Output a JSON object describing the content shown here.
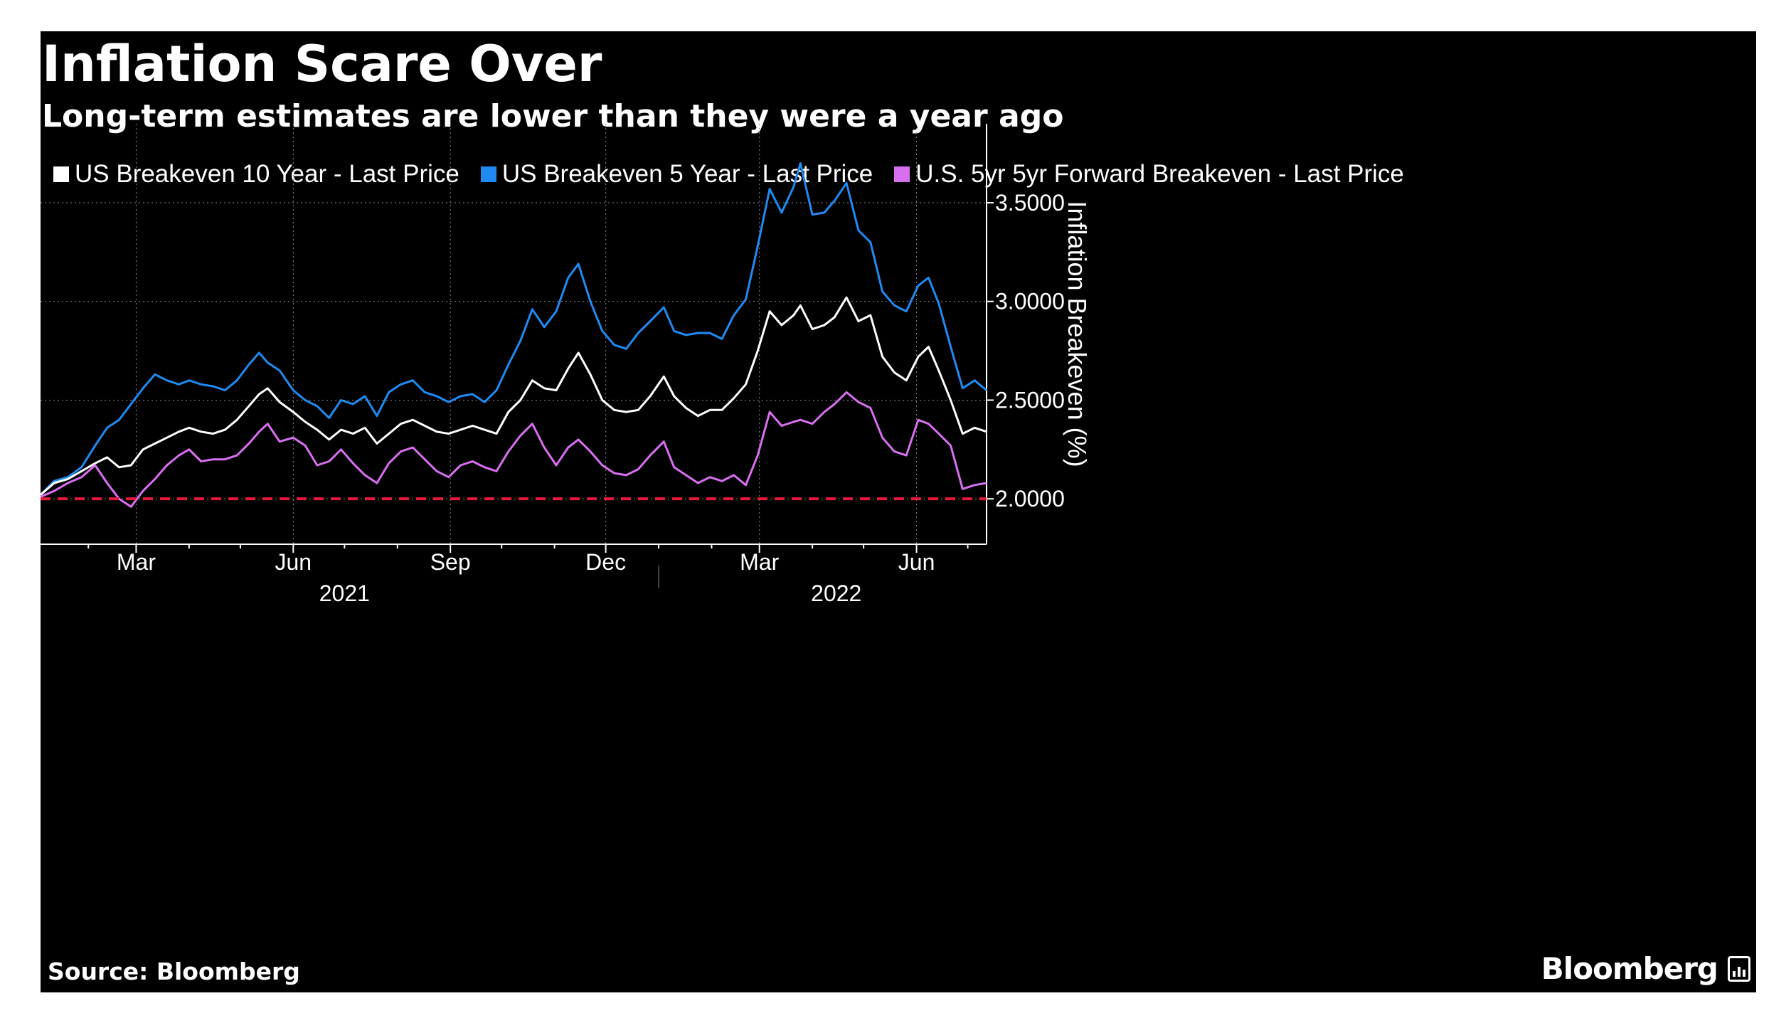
{
  "brand": "Bloomberg",
  "chart_data": {
    "type": "line",
    "title": "Inflation Scare Over",
    "subtitle": "Long-term estimates are lower than they were a year ago",
    "source": "Source: Bloomberg",
    "ylabel": "Inflation Breakeven (%)",
    "ylim": [
      1.77,
      3.9
    ],
    "y_ticks": [
      2.0,
      2.5,
      3.0,
      3.5
    ],
    "y_tick_labels": [
      "2.0000",
      "2.5000",
      "3.0000",
      "3.5000"
    ],
    "y_axis_side": "right",
    "x_range": [
      "2021-01-04",
      "2022-07-12"
    ],
    "x_ticks": [
      {
        "date": "2021-03-01",
        "label": "Mar"
      },
      {
        "date": "2021-06-01",
        "label": "Jun"
      },
      {
        "date": "2021-09-01",
        "label": "Sep"
      },
      {
        "date": "2021-12-01",
        "label": "Dec"
      },
      {
        "date": "2022-03-01",
        "label": "Mar"
      },
      {
        "date": "2022-06-01",
        "label": "Jun"
      }
    ],
    "x_minor_ticks": [
      "2021-02-01",
      "2021-04-01",
      "2021-05-01",
      "2021-07-01",
      "2021-08-01",
      "2021-10-01",
      "2021-11-01",
      "2022-01-01",
      "2022-02-01",
      "2022-04-01",
      "2022-05-01",
      "2022-07-01"
    ],
    "year_labels": [
      {
        "label": "2021",
        "center": "2021-07-01"
      },
      {
        "label": "2022",
        "center": "2022-04-15"
      }
    ],
    "year_divider": "2022-01-01",
    "grid": true,
    "legend_position": "top-left",
    "reference_line": {
      "value": 2.0,
      "color": "#e8183c",
      "style": "dashed"
    },
    "series": [
      {
        "name": "US Breakeven 10 Year - Last Price",
        "color": "#ffffff",
        "points": [
          [
            "2021-01-04",
            2.02
          ],
          [
            "2021-01-12",
            2.08
          ],
          [
            "2021-01-20",
            2.1
          ],
          [
            "2021-01-28",
            2.14
          ],
          [
            "2021-02-05",
            2.18
          ],
          [
            "2021-02-12",
            2.21
          ],
          [
            "2021-02-19",
            2.16
          ],
          [
            "2021-02-26",
            2.17
          ],
          [
            "2021-03-05",
            2.25
          ],
          [
            "2021-03-12",
            2.28
          ],
          [
            "2021-03-19",
            2.31
          ],
          [
            "2021-03-26",
            2.34
          ],
          [
            "2021-04-01",
            2.36
          ],
          [
            "2021-04-08",
            2.34
          ],
          [
            "2021-04-15",
            2.33
          ],
          [
            "2021-04-22",
            2.35
          ],
          [
            "2021-04-29",
            2.4
          ],
          [
            "2021-05-06",
            2.47
          ],
          [
            "2021-05-12",
            2.53
          ],
          [
            "2021-05-17",
            2.56
          ],
          [
            "2021-05-24",
            2.49
          ],
          [
            "2021-06-01",
            2.44
          ],
          [
            "2021-06-08",
            2.39
          ],
          [
            "2021-06-15",
            2.35
          ],
          [
            "2021-06-22",
            2.3
          ],
          [
            "2021-06-29",
            2.35
          ],
          [
            "2021-07-06",
            2.33
          ],
          [
            "2021-07-13",
            2.36
          ],
          [
            "2021-07-20",
            2.28
          ],
          [
            "2021-07-27",
            2.33
          ],
          [
            "2021-08-03",
            2.38
          ],
          [
            "2021-08-10",
            2.4
          ],
          [
            "2021-08-17",
            2.37
          ],
          [
            "2021-08-24",
            2.34
          ],
          [
            "2021-08-31",
            2.33
          ],
          [
            "2021-09-07",
            2.35
          ],
          [
            "2021-09-14",
            2.37
          ],
          [
            "2021-09-21",
            2.35
          ],
          [
            "2021-09-28",
            2.33
          ],
          [
            "2021-10-05",
            2.44
          ],
          [
            "2021-10-12",
            2.5
          ],
          [
            "2021-10-19",
            2.6
          ],
          [
            "2021-10-26",
            2.56
          ],
          [
            "2021-11-02",
            2.55
          ],
          [
            "2021-11-09",
            2.66
          ],
          [
            "2021-11-15",
            2.74
          ],
          [
            "2021-11-22",
            2.63
          ],
          [
            "2021-11-29",
            2.5
          ],
          [
            "2021-12-06",
            2.45
          ],
          [
            "2021-12-13",
            2.44
          ],
          [
            "2021-12-20",
            2.45
          ],
          [
            "2021-12-27",
            2.52
          ],
          [
            "2022-01-04",
            2.62
          ],
          [
            "2022-01-10",
            2.52
          ],
          [
            "2022-01-17",
            2.46
          ],
          [
            "2022-01-24",
            2.42
          ],
          [
            "2022-01-31",
            2.45
          ],
          [
            "2022-02-07",
            2.45
          ],
          [
            "2022-02-14",
            2.51
          ],
          [
            "2022-02-21",
            2.58
          ],
          [
            "2022-02-28",
            2.75
          ],
          [
            "2022-03-07",
            2.95
          ],
          [
            "2022-03-14",
            2.88
          ],
          [
            "2022-03-21",
            2.93
          ],
          [
            "2022-03-25",
            2.98
          ],
          [
            "2022-04-01",
            2.86
          ],
          [
            "2022-04-08",
            2.88
          ],
          [
            "2022-04-14",
            2.92
          ],
          [
            "2022-04-21",
            3.02
          ],
          [
            "2022-04-28",
            2.9
          ],
          [
            "2022-05-05",
            2.93
          ],
          [
            "2022-05-12",
            2.72
          ],
          [
            "2022-05-19",
            2.64
          ],
          [
            "2022-05-26",
            2.6
          ],
          [
            "2022-06-02",
            2.72
          ],
          [
            "2022-06-08",
            2.77
          ],
          [
            "2022-06-14",
            2.65
          ],
          [
            "2022-06-21",
            2.5
          ],
          [
            "2022-06-28",
            2.33
          ],
          [
            "2022-07-05",
            2.36
          ],
          [
            "2022-07-12",
            2.34
          ]
        ]
      },
      {
        "name": "US Breakeven 5 Year - Last Price",
        "color": "#1f8bf2",
        "points": [
          [
            "2021-01-04",
            2.02
          ],
          [
            "2021-01-12",
            2.09
          ],
          [
            "2021-01-20",
            2.11
          ],
          [
            "2021-01-28",
            2.16
          ],
          [
            "2021-02-05",
            2.27
          ],
          [
            "2021-02-12",
            2.36
          ],
          [
            "2021-02-19",
            2.4
          ],
          [
            "2021-02-26",
            2.48
          ],
          [
            "2021-03-05",
            2.56
          ],
          [
            "2021-03-12",
            2.63
          ],
          [
            "2021-03-19",
            2.6
          ],
          [
            "2021-03-26",
            2.58
          ],
          [
            "2021-04-01",
            2.6
          ],
          [
            "2021-04-08",
            2.58
          ],
          [
            "2021-04-15",
            2.57
          ],
          [
            "2021-04-22",
            2.55
          ],
          [
            "2021-04-29",
            2.6
          ],
          [
            "2021-05-06",
            2.68
          ],
          [
            "2021-05-12",
            2.74
          ],
          [
            "2021-05-17",
            2.69
          ],
          [
            "2021-05-24",
            2.65
          ],
          [
            "2021-06-01",
            2.55
          ],
          [
            "2021-06-08",
            2.5
          ],
          [
            "2021-06-15",
            2.47
          ],
          [
            "2021-06-22",
            2.41
          ],
          [
            "2021-06-29",
            2.5
          ],
          [
            "2021-07-06",
            2.48
          ],
          [
            "2021-07-13",
            2.52
          ],
          [
            "2021-07-20",
            2.42
          ],
          [
            "2021-07-27",
            2.54
          ],
          [
            "2021-08-03",
            2.58
          ],
          [
            "2021-08-10",
            2.6
          ],
          [
            "2021-08-17",
            2.54
          ],
          [
            "2021-08-24",
            2.52
          ],
          [
            "2021-08-31",
            2.49
          ],
          [
            "2021-09-07",
            2.52
          ],
          [
            "2021-09-14",
            2.53
          ],
          [
            "2021-09-21",
            2.49
          ],
          [
            "2021-09-28",
            2.55
          ],
          [
            "2021-10-05",
            2.68
          ],
          [
            "2021-10-12",
            2.8
          ],
          [
            "2021-10-19",
            2.96
          ],
          [
            "2021-10-26",
            2.87
          ],
          [
            "2021-11-02",
            2.95
          ],
          [
            "2021-11-09",
            3.12
          ],
          [
            "2021-11-15",
            3.19
          ],
          [
            "2021-11-22",
            3.0
          ],
          [
            "2021-11-29",
            2.85
          ],
          [
            "2021-12-06",
            2.78
          ],
          [
            "2021-12-13",
            2.76
          ],
          [
            "2021-12-20",
            2.84
          ],
          [
            "2021-12-27",
            2.9
          ],
          [
            "2022-01-04",
            2.97
          ],
          [
            "2022-01-10",
            2.85
          ],
          [
            "2022-01-17",
            2.83
          ],
          [
            "2022-01-24",
            2.84
          ],
          [
            "2022-01-31",
            2.84
          ],
          [
            "2022-02-07",
            2.81
          ],
          [
            "2022-02-14",
            2.93
          ],
          [
            "2022-02-21",
            3.01
          ],
          [
            "2022-02-28",
            3.28
          ],
          [
            "2022-03-07",
            3.57
          ],
          [
            "2022-03-14",
            3.45
          ],
          [
            "2022-03-21",
            3.58
          ],
          [
            "2022-03-25",
            3.7
          ],
          [
            "2022-04-01",
            3.44
          ],
          [
            "2022-04-08",
            3.45
          ],
          [
            "2022-04-14",
            3.51
          ],
          [
            "2022-04-21",
            3.6
          ],
          [
            "2022-04-28",
            3.36
          ],
          [
            "2022-05-05",
            3.3
          ],
          [
            "2022-05-12",
            3.05
          ],
          [
            "2022-05-19",
            2.98
          ],
          [
            "2022-05-26",
            2.95
          ],
          [
            "2022-06-02",
            3.08
          ],
          [
            "2022-06-08",
            3.12
          ],
          [
            "2022-06-14",
            2.99
          ],
          [
            "2022-06-21",
            2.77
          ],
          [
            "2022-06-28",
            2.56
          ],
          [
            "2022-07-05",
            2.6
          ],
          [
            "2022-07-12",
            2.55
          ]
        ]
      },
      {
        "name": "U.S. 5yr 5yr Forward Breakeven - Last Price",
        "color": "#d86ff0",
        "points": [
          [
            "2021-01-04",
            2.01
          ],
          [
            "2021-01-12",
            2.04
          ],
          [
            "2021-01-20",
            2.08
          ],
          [
            "2021-01-28",
            2.11
          ],
          [
            "2021-02-05",
            2.17
          ],
          [
            "2021-02-12",
            2.08
          ],
          [
            "2021-02-19",
            2.0
          ],
          [
            "2021-02-26",
            1.96
          ],
          [
            "2021-03-05",
            2.04
          ],
          [
            "2021-03-12",
            2.1
          ],
          [
            "2021-03-19",
            2.17
          ],
          [
            "2021-03-26",
            2.22
          ],
          [
            "2021-04-01",
            2.25
          ],
          [
            "2021-04-08",
            2.19
          ],
          [
            "2021-04-15",
            2.2
          ],
          [
            "2021-04-22",
            2.2
          ],
          [
            "2021-04-29",
            2.22
          ],
          [
            "2021-05-06",
            2.28
          ],
          [
            "2021-05-12",
            2.34
          ],
          [
            "2021-05-17",
            2.38
          ],
          [
            "2021-05-24",
            2.29
          ],
          [
            "2021-06-01",
            2.31
          ],
          [
            "2021-06-08",
            2.27
          ],
          [
            "2021-06-15",
            2.17
          ],
          [
            "2021-06-22",
            2.19
          ],
          [
            "2021-06-29",
            2.25
          ],
          [
            "2021-07-06",
            2.18
          ],
          [
            "2021-07-13",
            2.12
          ],
          [
            "2021-07-20",
            2.08
          ],
          [
            "2021-07-27",
            2.18
          ],
          [
            "2021-08-03",
            2.24
          ],
          [
            "2021-08-10",
            2.26
          ],
          [
            "2021-08-17",
            2.2
          ],
          [
            "2021-08-24",
            2.14
          ],
          [
            "2021-08-31",
            2.11
          ],
          [
            "2021-09-07",
            2.17
          ],
          [
            "2021-09-14",
            2.19
          ],
          [
            "2021-09-21",
            2.16
          ],
          [
            "2021-09-28",
            2.14
          ],
          [
            "2021-10-05",
            2.24
          ],
          [
            "2021-10-12",
            2.32
          ],
          [
            "2021-10-19",
            2.38
          ],
          [
            "2021-10-26",
            2.26
          ],
          [
            "2021-11-02",
            2.17
          ],
          [
            "2021-11-09",
            2.26
          ],
          [
            "2021-11-15",
            2.3
          ],
          [
            "2021-11-22",
            2.24
          ],
          [
            "2021-11-29",
            2.17
          ],
          [
            "2021-12-06",
            2.13
          ],
          [
            "2021-12-13",
            2.12
          ],
          [
            "2021-12-20",
            2.15
          ],
          [
            "2021-12-27",
            2.22
          ],
          [
            "2022-01-04",
            2.29
          ],
          [
            "2022-01-10",
            2.16
          ],
          [
            "2022-01-17",
            2.12
          ],
          [
            "2022-01-24",
            2.08
          ],
          [
            "2022-01-31",
            2.11
          ],
          [
            "2022-02-07",
            2.09
          ],
          [
            "2022-02-14",
            2.12
          ],
          [
            "2022-02-21",
            2.07
          ],
          [
            "2022-02-28",
            2.22
          ],
          [
            "2022-03-07",
            2.44
          ],
          [
            "2022-03-14",
            2.37
          ],
          [
            "2022-03-21",
            2.39
          ],
          [
            "2022-03-25",
            2.4
          ],
          [
            "2022-04-01",
            2.38
          ],
          [
            "2022-04-08",
            2.44
          ],
          [
            "2022-04-14",
            2.48
          ],
          [
            "2022-04-21",
            2.54
          ],
          [
            "2022-04-28",
            2.49
          ],
          [
            "2022-05-05",
            2.46
          ],
          [
            "2022-05-12",
            2.31
          ],
          [
            "2022-05-19",
            2.24
          ],
          [
            "2022-05-26",
            2.22
          ],
          [
            "2022-06-02",
            2.4
          ],
          [
            "2022-06-08",
            2.38
          ],
          [
            "2022-06-14",
            2.33
          ],
          [
            "2022-06-21",
            2.27
          ],
          [
            "2022-06-28",
            2.05
          ],
          [
            "2022-07-05",
            2.07
          ],
          [
            "2022-07-12",
            2.08
          ]
        ]
      }
    ]
  }
}
